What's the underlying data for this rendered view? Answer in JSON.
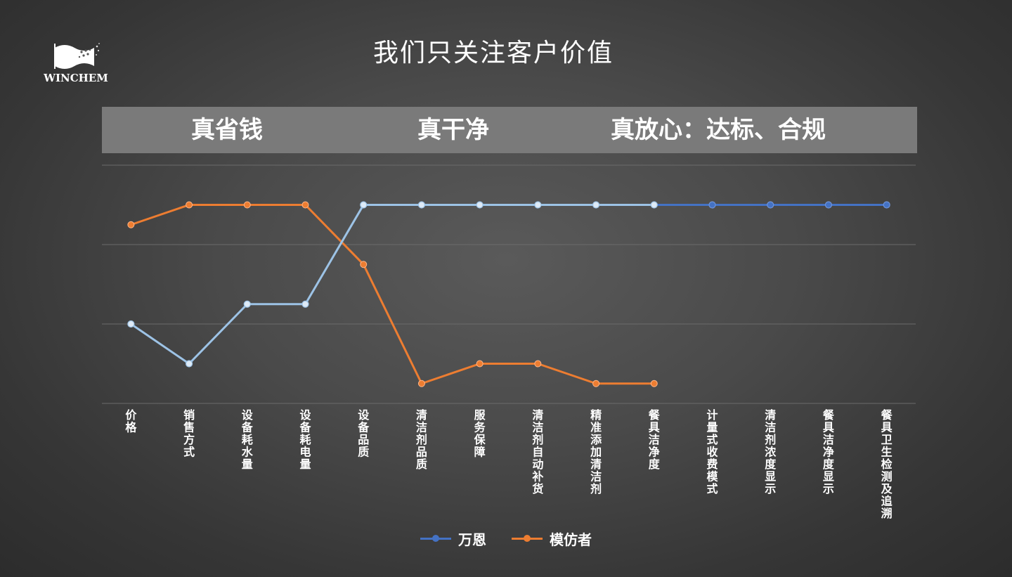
{
  "logo": {
    "text": "WINCHEM"
  },
  "title": "我们只关注客户价值",
  "band": {
    "items": [
      "真省钱",
      "真干净",
      "真放心：达标、合规"
    ]
  },
  "colors": {
    "wanen_light": "#9dc3e6",
    "wanen_dark": "#4472c4",
    "imitator": "#ed7d31",
    "band": "#7a7a7a",
    "grid": "#6b6b6b"
  },
  "chart_data": {
    "type": "line",
    "categories": [
      "价格",
      "销售方式",
      "设备耗水量",
      "设备耗电量",
      "设备品质",
      "清洁剂品质",
      "服务保障",
      "清洁剂自动补货",
      "精准添加清洁剂",
      "餐具洁净度",
      "计量式收费模式",
      "清洁剂浓度显示",
      "餐具洁净度显示",
      "餐具卫生检测及追溯"
    ],
    "ylim": [
      0,
      6
    ],
    "grid": true,
    "legend_position": "bottom",
    "series": [
      {
        "name": "万恩",
        "values": [
          2,
          1,
          2.5,
          2.5,
          5,
          5,
          5,
          5,
          5,
          5,
          5,
          5,
          5,
          5
        ]
      },
      {
        "name": "模仿者",
        "values": [
          4.5,
          5,
          5,
          5,
          3.5,
          0.5,
          1,
          1,
          0.5,
          0.5,
          null,
          null,
          null,
          null
        ]
      }
    ]
  },
  "legend": {
    "items": [
      "万恩",
      "模仿者"
    ]
  }
}
